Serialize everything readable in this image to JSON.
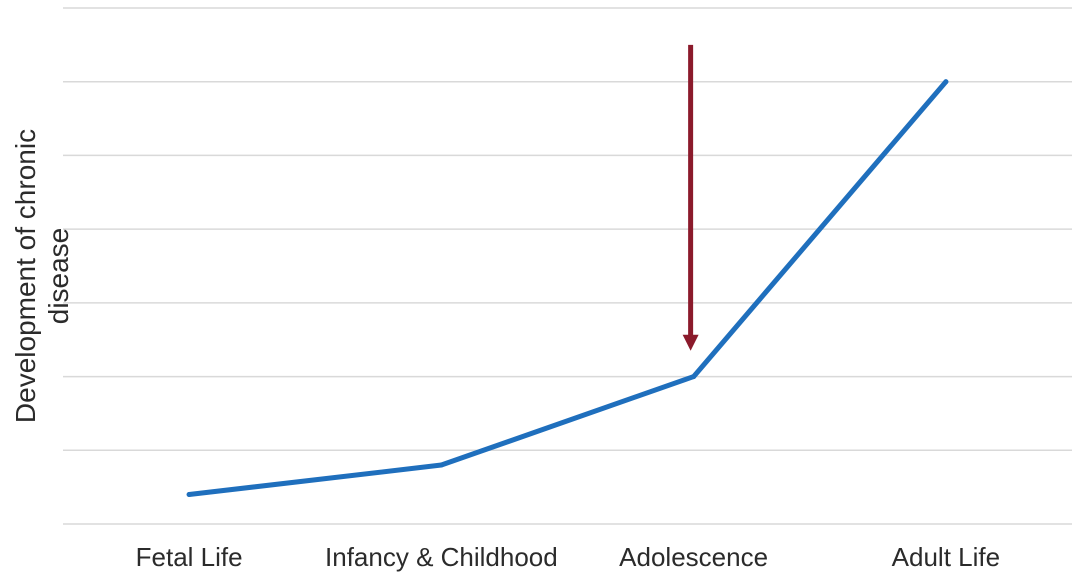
{
  "chart_data": {
    "type": "line",
    "categories": [
      "Fetal Life",
      "Infancy & Childhood",
      "Adolescence",
      "Adult Life"
    ],
    "series": [
      {
        "values": [
          0.4,
          0.8,
          2.0,
          6.0
        ]
      }
    ],
    "xlabel": "",
    "ylabel": "Development of chronic disease",
    "ylim": [
      0,
      7
    ],
    "grid": true,
    "legend": "none",
    "annotations": [
      {
        "type": "arrow",
        "pointing": "down",
        "x": "Adolescence",
        "from_y": 6.5,
        "to_y": 2.35,
        "color": "#8b1a2b"
      }
    ],
    "colors": {
      "line": "#1f6fbd",
      "grid": "#d9d9d9",
      "arrow": "#8b1a2b"
    }
  }
}
